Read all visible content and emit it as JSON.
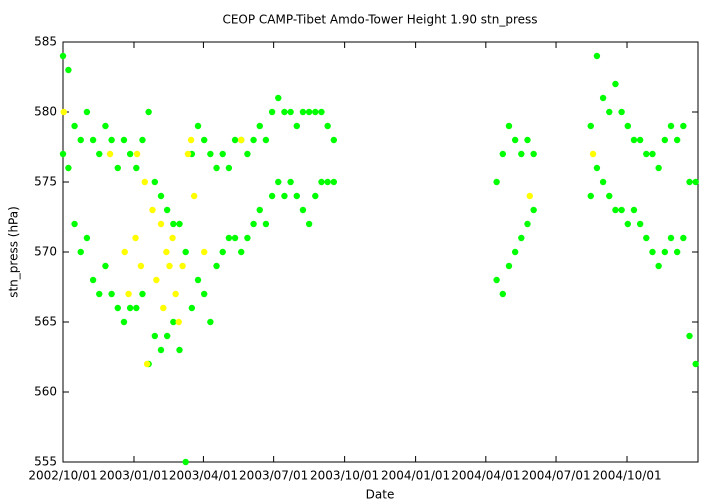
{
  "chart_data": {
    "type": "scatter",
    "title": "CEOP CAMP-Tibet Amdo-Tower Height 1.90 stn_press",
    "x_label": "Date",
    "y_label": "stn_press (hPa)",
    "xlim": [
      "2002/10/01",
      "2005/01/01"
    ],
    "xticks": [
      "2002/10/01",
      "2003/01/01",
      "2003/04/01",
      "2003/07/01",
      "2003/10/01",
      "2004/01/01",
      "2004/04/01",
      "2004/07/01",
      "2004/10/01"
    ],
    "ylim": [
      555,
      585
    ],
    "yticks": [
      555,
      560,
      565,
      570,
      575,
      580,
      585
    ],
    "series": [
      {
        "color": "#00ff00",
        "x": [
          "2002/10/01",
          "2002/10/01",
          "2002/10/08",
          "2002/10/08",
          "2002/10/16",
          "2002/10/16",
          "2002/10/24",
          "2002/10/24",
          "2002/11/01",
          "2002/11/01",
          "2002/11/09",
          "2002/11/09",
          "2002/11/17",
          "2002/11/17",
          "2002/11/25",
          "2002/11/25",
          "2002/12/03",
          "2002/12/03",
          "2002/12/11",
          "2002/12/11",
          "2002/12/19",
          "2002/12/19",
          "2002/12/27",
          "2002/12/27",
          "2003/01/04",
          "2003/01/04",
          "2003/01/12",
          "2003/01/12",
          "2003/01/20",
          "2003/01/20",
          "2003/01/28",
          "2003/01/28",
          "2003/02/05",
          "2003/02/05",
          "2003/02/13",
          "2003/02/13",
          "2003/02/21",
          "2003/02/21",
          "2003/03/01",
          "2003/03/01",
          "2003/03/09",
          "2003/03/09",
          "2003/03/17",
          "2003/03/17",
          "2003/03/25",
          "2003/03/25",
          "2003/04/02",
          "2003/04/02",
          "2003/04/10",
          "2003/04/10",
          "2003/04/18",
          "2003/04/18",
          "2003/04/26",
          "2003/04/26",
          "2003/05/04",
          "2003/05/04",
          "2003/05/12",
          "2003/05/12",
          "2003/05/20",
          "2003/05/20",
          "2003/05/28",
          "2003/05/28",
          "2003/06/05",
          "2003/06/05",
          "2003/06/13",
          "2003/06/13",
          "2003/06/21",
          "2003/06/21",
          "2003/06/29",
          "2003/06/29",
          "2003/07/07",
          "2003/07/07",
          "2003/07/15",
          "2003/07/15",
          "2003/07/23",
          "2003/07/23",
          "2003/07/31",
          "2003/07/31",
          "2003/08/08",
          "2003/08/08",
          "2003/08/16",
          "2003/08/16",
          "2003/08/24",
          "2003/08/24",
          "2003/09/01",
          "2003/09/01",
          "2003/09/09",
          "2003/09/09",
          "2003/09/17",
          "2003/09/17",
          "2004/04/15",
          "2004/04/15",
          "2004/04/23",
          "2004/04/23",
          "2004/05/01",
          "2004/05/01",
          "2004/05/09",
          "2004/05/09",
          "2004/05/17",
          "2004/05/17",
          "2004/05/25",
          "2004/05/25",
          "2004/06/02",
          "2004/06/02",
          "2004/08/15",
          "2004/08/15",
          "2004/08/23",
          "2004/08/23",
          "2004/08/31",
          "2004/08/31",
          "2004/09/08",
          "2004/09/08",
          "2004/09/16",
          "2004/09/16",
          "2004/09/24",
          "2004/09/24",
          "2004/10/02",
          "2004/10/02",
          "2004/10/10",
          "2004/10/10",
          "2004/10/18",
          "2004/10/18",
          "2004/10/26",
          "2004/10/26",
          "2004/11/03",
          "2004/11/03",
          "2004/11/11",
          "2004/11/11",
          "2004/11/19",
          "2004/11/19",
          "2004/11/27",
          "2004/11/27",
          "2004/12/05",
          "2004/12/05",
          "2004/12/13",
          "2004/12/13",
          "2004/12/21",
          "2004/12/21",
          "2004/12/29",
          "2004/12/29"
        ],
        "values": [
          584,
          577,
          583,
          576,
          579,
          572,
          578,
          570,
          580,
          571,
          578,
          568,
          577,
          567,
          579,
          569,
          578,
          567,
          576,
          566,
          578,
          565,
          577,
          566,
          576,
          566,
          578,
          567,
          580,
          562,
          575,
          564,
          574,
          563,
          573,
          564,
          572,
          565,
          572,
          563,
          570,
          555,
          577,
          566,
          579,
          568,
          578,
          567,
          577,
          565,
          576,
          569,
          577,
          570,
          576,
          571,
          578,
          571,
          578,
          570,
          577,
          571,
          578,
          572,
          579,
          573,
          578,
          572,
          580,
          574,
          581,
          575,
          580,
          574,
          580,
          575,
          579,
          574,
          580,
          573,
          580,
          572,
          580,
          574,
          580,
          575,
          579,
          575,
          578,
          575,
          575,
          568,
          577,
          567,
          579,
          569,
          578,
          570,
          577,
          571,
          578,
          572,
          577,
          573,
          579,
          574,
          584,
          576,
          581,
          575,
          580,
          574,
          582,
          573,
          580,
          573,
          579,
          572,
          578,
          573,
          578,
          572,
          577,
          571,
          577,
          570,
          576,
          569,
          578,
          570,
          579,
          571,
          578,
          570,
          579,
          571,
          575,
          564,
          575,
          562
        ]
      },
      {
        "color": "#ffff00",
        "x": [
          "2002/10/02",
          "2002/12/01",
          "2002/12/20",
          "2002/12/25",
          "2003/01/03",
          "2003/01/05",
          "2003/01/10",
          "2003/01/15",
          "2003/01/18",
          "2003/01/25",
          "2003/01/30",
          "2003/02/05",
          "2003/02/08",
          "2003/02/12",
          "2003/02/16",
          "2003/02/20",
          "2003/02/24",
          "2003/02/28",
          "2003/03/05",
          "2003/03/12",
          "2003/03/16",
          "2003/03/20",
          "2003/04/02",
          "2003/05/20",
          "2004/05/28",
          "2004/08/18"
        ],
        "values": [
          580,
          577,
          570,
          567,
          571,
          577,
          569,
          575,
          562,
          573,
          568,
          572,
          566,
          570,
          569,
          571,
          567,
          565,
          569,
          577,
          578,
          574,
          570,
          578,
          574,
          577
        ]
      }
    ]
  }
}
